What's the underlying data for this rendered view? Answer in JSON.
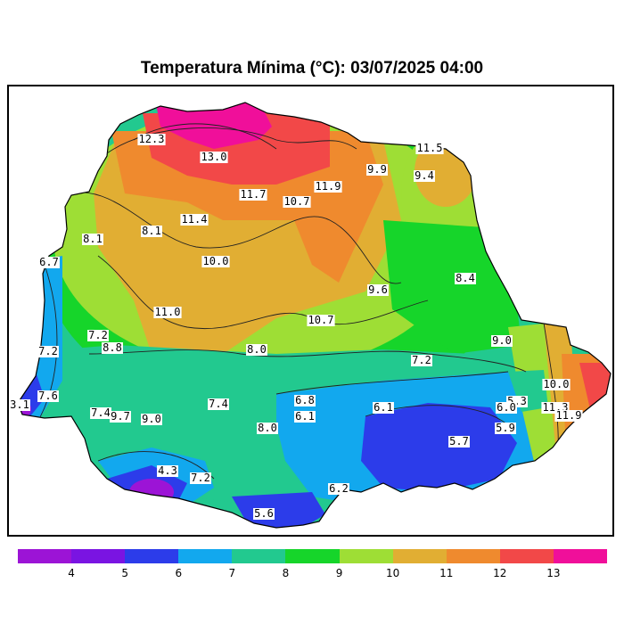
{
  "title": "Temperatura Mínima (°C): 03/07/2025 04:00",
  "map_labels": [
    "12.3",
    "13.0",
    "11.5",
    "9.9",
    "9.4",
    "11.7",
    "10.7",
    "11.9",
    "11.4",
    "8.1",
    "8.1",
    "6.7",
    "10.0",
    "9.6",
    "8.4",
    "11.0",
    "10.7",
    "7.2",
    "8.8",
    "9.0",
    "7.2",
    "8.0",
    "7.2",
    "7.6",
    "3.1",
    "7.4",
    "9.7",
    "9.0",
    "7.4",
    "6.8",
    "6.1",
    "8.0",
    "6.1",
    "5.3",
    "6.0",
    "10.0",
    "11.3",
    "11.9",
    "5.9",
    "5.7",
    "4.3",
    "7.2",
    "6.2",
    "5.6"
  ],
  "legend": {
    "colors": [
      "#9C14D6",
      "#7A14E2",
      "#2C3CEA",
      "#12A8EE",
      "#22C98F",
      "#16D52A",
      "#9EDE35",
      "#E1AE33",
      "#EF8A2E",
      "#F24848",
      "#F00F9A"
    ],
    "ticks": [
      "4",
      "5",
      "6",
      "7",
      "8",
      "9",
      "10",
      "11",
      "12",
      "13"
    ]
  }
}
